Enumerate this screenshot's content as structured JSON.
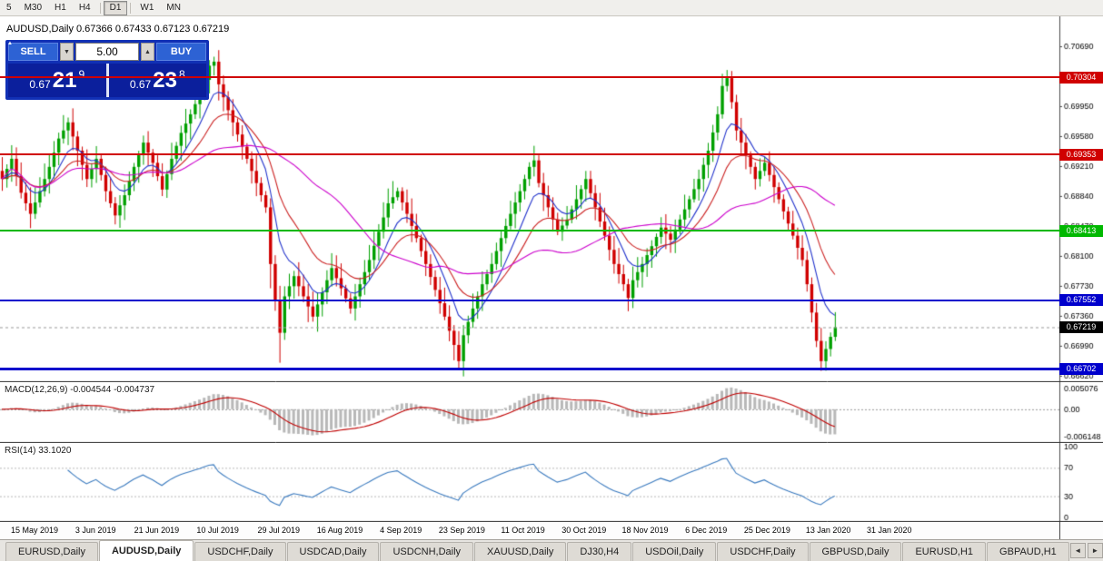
{
  "toolbar": {
    "timeframes": [
      "5",
      "M30",
      "H1",
      "H4",
      "D1",
      "W1",
      "MN"
    ],
    "active": "D1"
  },
  "chart": {
    "symbol": "AUDUSD,Daily",
    "title": "AUDUSD,Daily 0.67366 0.67433 0.67123 0.67219"
  },
  "trade_panel": {
    "sell_label": "SELL",
    "buy_label": "BUY",
    "volume": "5.00",
    "sell_price": {
      "prefix": "0.67",
      "big": "21",
      "sup": "9"
    },
    "buy_price": {
      "prefix": "0.67",
      "big": "23",
      "sup": "8"
    }
  },
  "tabs": [
    {
      "label": "EURUSD,Daily",
      "active": false
    },
    {
      "label": "AUDUSD,Daily",
      "active": true
    },
    {
      "label": "USDCHF,Daily",
      "active": false
    },
    {
      "label": "USDCAD,Daily",
      "active": false
    },
    {
      "label": "USDCNH,Daily",
      "active": false
    },
    {
      "label": "XAUUSD,Daily",
      "active": false
    },
    {
      "label": "DJ30,H4",
      "active": false
    },
    {
      "label": "USDOil,Daily",
      "active": false
    },
    {
      "label": "USDCHF,Daily",
      "active": false
    },
    {
      "label": "GBPUSD,Daily",
      "active": false
    },
    {
      "label": "EURUSD,H1",
      "active": false
    },
    {
      "label": "GBPAUD,H1",
      "active": false
    }
  ],
  "tab_scroll": {
    "left": "◄",
    "right": "►"
  },
  "chart_data": {
    "type": "candlestick",
    "symbol": "AUDUSD",
    "timeframe": "Daily",
    "ohlc_current": {
      "open": 0.67366,
      "high": 0.67433,
      "low": 0.67123,
      "close": 0.67219
    },
    "y_range": [
      0.6654,
      0.7106
    ],
    "price_ticks": [
      "0.70690",
      "0.70320",
      "0.69950",
      "0.69580",
      "0.69210",
      "0.68840",
      "0.68470",
      "0.68100",
      "0.67730",
      "0.67360",
      "0.66990",
      "0.66620"
    ],
    "x_labels": [
      "15 May 2019",
      "3 Jun 2019",
      "21 Jun 2019",
      "10 Jul 2019",
      "29 Jul 2019",
      "16 Aug 2019",
      "4 Sep 2019",
      "23 Sep 2019",
      "11 Oct 2019",
      "30 Oct 2019",
      "18 Nov 2019",
      "6 Dec 2019",
      "25 Dec 2019",
      "13 Jan 2020",
      "31 Jan 2020"
    ],
    "hlines": [
      {
        "price": "0.70304",
        "value": 0.70304,
        "color": "#d00000",
        "width": 2
      },
      {
        "price": "0.69353",
        "value": 0.69353,
        "color": "#d00000",
        "width": 2
      },
      {
        "price": "0.68413",
        "value": 0.68413,
        "color": "#00b800",
        "width": 2
      },
      {
        "price": "0.67552",
        "value": 0.67552,
        "color": "#0000cc",
        "width": 2
      },
      {
        "price": "0.66702",
        "value": 0.66702,
        "color": "#0000cc",
        "width": 3
      }
    ],
    "current_price": {
      "label": "0.67219",
      "value": 0.67219,
      "badge_color": "#000000"
    },
    "bull_color": "#00a000",
    "bear_color": "#d00000",
    "ma_colors": [
      "#2233cc",
      "#cc2222",
      "#cc00cc"
    ],
    "ma_periods": [
      8,
      17,
      34
    ],
    "closes": [
      0.6905,
      0.69175,
      0.693,
      0.6909,
      0.6888,
      0.6875,
      0.6862,
      0.6876,
      0.689,
      0.6905,
      0.692,
      0.69375,
      0.6955,
      0.6965,
      0.6975,
      0.69575,
      0.694,
      0.69225,
      0.6905,
      0.69175,
      0.693,
      0.691,
      0.689,
      0.6875,
      0.686,
      0.68725,
      0.6885,
      0.69025,
      0.692,
      0.6935,
      0.695,
      0.69375,
      0.6925,
      0.69085,
      0.6892,
      0.6911,
      0.693,
      0.6946,
      0.6962,
      0.69735,
      0.6985,
      0.69975,
      0.701,
      0.70275,
      0.7045,
      0.705,
      0.7022,
      0.7006,
      0.699,
      0.6975,
      0.696,
      0.6945,
      0.693,
      0.6915,
      0.69,
      0.6885,
      0.687,
      0.68,
      0.6755,
      0.6715,
      0.676,
      0.67725,
      0.6785,
      0.67725,
      0.676,
      0.67475,
      0.6735,
      0.675,
      0.6765,
      0.678,
      0.6795,
      0.67825,
      0.677,
      0.67575,
      0.6745,
      0.676,
      0.6775,
      0.679,
      0.6805,
      0.68225,
      0.684,
      0.68575,
      0.6875,
      0.68825,
      0.689,
      0.6876,
      0.6862,
      0.6847,
      0.6832,
      0.6816,
      0.68,
      0.6784,
      0.6768,
      0.67515,
      0.6735,
      0.67175,
      0.67,
      0.668,
      0.6712,
      0.67285,
      0.6745,
      0.676,
      0.6775,
      0.67875,
      0.68,
      0.6816,
      0.6832,
      0.6847,
      0.6862,
      0.6876,
      0.689,
      0.6905,
      0.692,
      0.6928,
      0.69,
      0.6885,
      0.687,
      0.6855,
      0.684,
      0.68475,
      0.6855,
      0.68675,
      0.688,
      0.68925,
      0.6905,
      0.68875,
      0.687,
      0.68525,
      0.6835,
      0.68175,
      0.68,
      0.67875,
      0.6775,
      0.6758,
      0.678,
      0.679,
      0.68,
      0.6811,
      0.6822,
      0.68335,
      0.6845,
      0.68375,
      0.683,
      0.68425,
      0.6855,
      0.68675,
      0.688,
      0.68925,
      0.6905,
      0.69225,
      0.694,
      0.69625,
      0.6985,
      0.702,
      0.703,
      0.7,
      0.6965,
      0.695,
      0.6935,
      0.692,
      0.6905,
      0.6915,
      0.6925,
      0.691,
      0.6895,
      0.688,
      0.6865,
      0.685,
      0.6835,
      0.682,
      0.6805,
      0.6775,
      0.674,
      0.6705,
      0.668,
      0.6695,
      0.671,
      0.67219
    ],
    "wick_overrides": {
      "high": {
        "44": 0.7052,
        "45": 0.70561,
        "153": 0.7035,
        "154": 0.70397
      },
      "low": {
        "57": 0.677,
        "59": 0.6678,
        "97": 0.66703,
        "174": 0.6668
      }
    },
    "indicators": [
      {
        "name": "MACD",
        "label": "MACD(12,26,9) -0.004544 -0.004737",
        "params": [
          12,
          26,
          9
        ],
        "values": [
          -0.004544,
          -0.004737
        ],
        "axis": [
          "0.005076",
          "0.00",
          "-0.006148"
        ],
        "hist_color": "#b8b8b8",
        "signal_color": "#c00000"
      },
      {
        "name": "RSI",
        "label": "RSI(14) 33.1020",
        "params": [
          14
        ],
        "value": 33.102,
        "axis": [
          "100",
          "70",
          "30",
          "0"
        ],
        "levels": [
          70,
          30
        ],
        "line_color": "#3a7abf"
      }
    ]
  }
}
